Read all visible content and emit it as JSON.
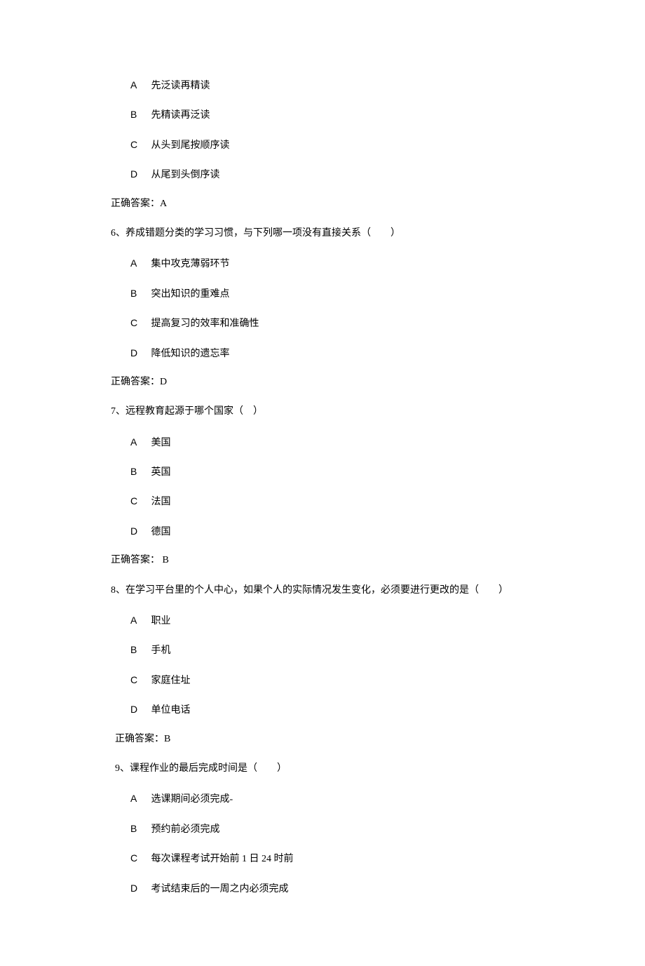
{
  "q5": {
    "options": {
      "A": "先泛读再精读",
      "B": "先精读再泛读",
      "C": "从头到尾按顺序读",
      "D": "从尾到头倒序读"
    },
    "answer": "正确答案：A"
  },
  "q6": {
    "text": "6、养成错题分类的学习习惯，与下列哪一项没有直接关系（　　）",
    "options": {
      "A": "集中攻克薄弱环节",
      "B": "突出知识的重难点",
      "C": "提高复习的效率和准确性",
      "D": "降低知识的遗忘率"
    },
    "answer": "正确答案：D"
  },
  "q7": {
    "text": "7、远程教育起源于哪个国家（　）",
    "options": {
      "A": "美国",
      "B": "英国",
      "C": "法国",
      "D": "德国"
    },
    "answer": "正确答案： B"
  },
  "q8": {
    "text": "8、在学习平台里的个人中心，如果个人的实际情况发生变化，必须要进行更改的是（　　）",
    "options": {
      "A": "职业",
      "B": "手机",
      "C": "家庭住址",
      "D": "单位电话"
    },
    "answer": "正确答案：B"
  },
  "q9": {
    "text": "9、课程作业的最后完成时间是（　　）",
    "options": {
      "A": "选课期间必须完成-",
      "B": "预约前必须完成",
      "C": "每次课程考试开始前 1 日 24 时前",
      "D": "考试结束后的一周之内必须完成"
    }
  },
  "letters": {
    "A": "A",
    "B": "B",
    "C": "C",
    "D": "D"
  }
}
